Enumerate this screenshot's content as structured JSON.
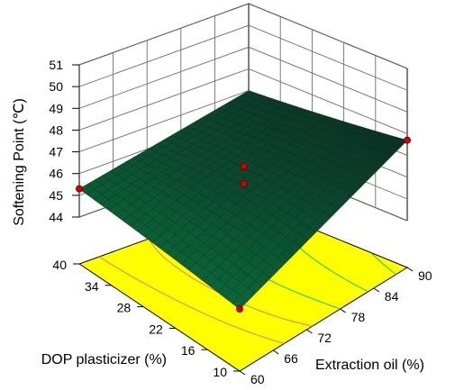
{
  "chart_data": {
    "type": "surface3d",
    "zlabel": "Softening Point (℃)",
    "xlabel": "DOP plasticizer (%)",
    "ylabel": "Extraction oil (%)",
    "z_ticks": [
      "44",
      "45",
      "46",
      "47",
      "48",
      "49",
      "50",
      "51"
    ],
    "x_ticks": [
      "10",
      "16",
      "22",
      "28",
      "34",
      "40"
    ],
    "y_ticks": [
      "60",
      "66",
      "72",
      "78",
      "84",
      "90"
    ],
    "xlim": [
      10,
      40
    ],
    "ylim": [
      60,
      90
    ],
    "zlim": [
      44,
      51
    ],
    "surface_corners": [
      {
        "dop": 40,
        "oil": 60,
        "softening_point": 45.3
      },
      {
        "dop": 10,
        "oil": 60,
        "softening_point": 44.7
      },
      {
        "dop": 10,
        "oil": 90,
        "softening_point": 47.7
      },
      {
        "dop": 40,
        "oil": 90,
        "softening_point": 47.0
      }
    ],
    "design_points": [
      {
        "dop": 40,
        "oil": 60,
        "softening_point": 45.3
      },
      {
        "dop": 10,
        "oil": 60,
        "softening_point": 44.7
      },
      {
        "dop": 10,
        "oil": 90,
        "softening_point": 47.7
      },
      {
        "dop": 25,
        "oil": 75,
        "softening_point": 46.9
      },
      {
        "dop": 25,
        "oil": 75,
        "softening_point": 46.1
      }
    ],
    "colors": {
      "contour_floor": "#ffff00",
      "surface_low": "#0a6b3c",
      "surface_high": "#0a2a22",
      "marker": "#d10000",
      "contour_line_low": "#e08a5a",
      "contour_line_high": "#28c850"
    }
  }
}
